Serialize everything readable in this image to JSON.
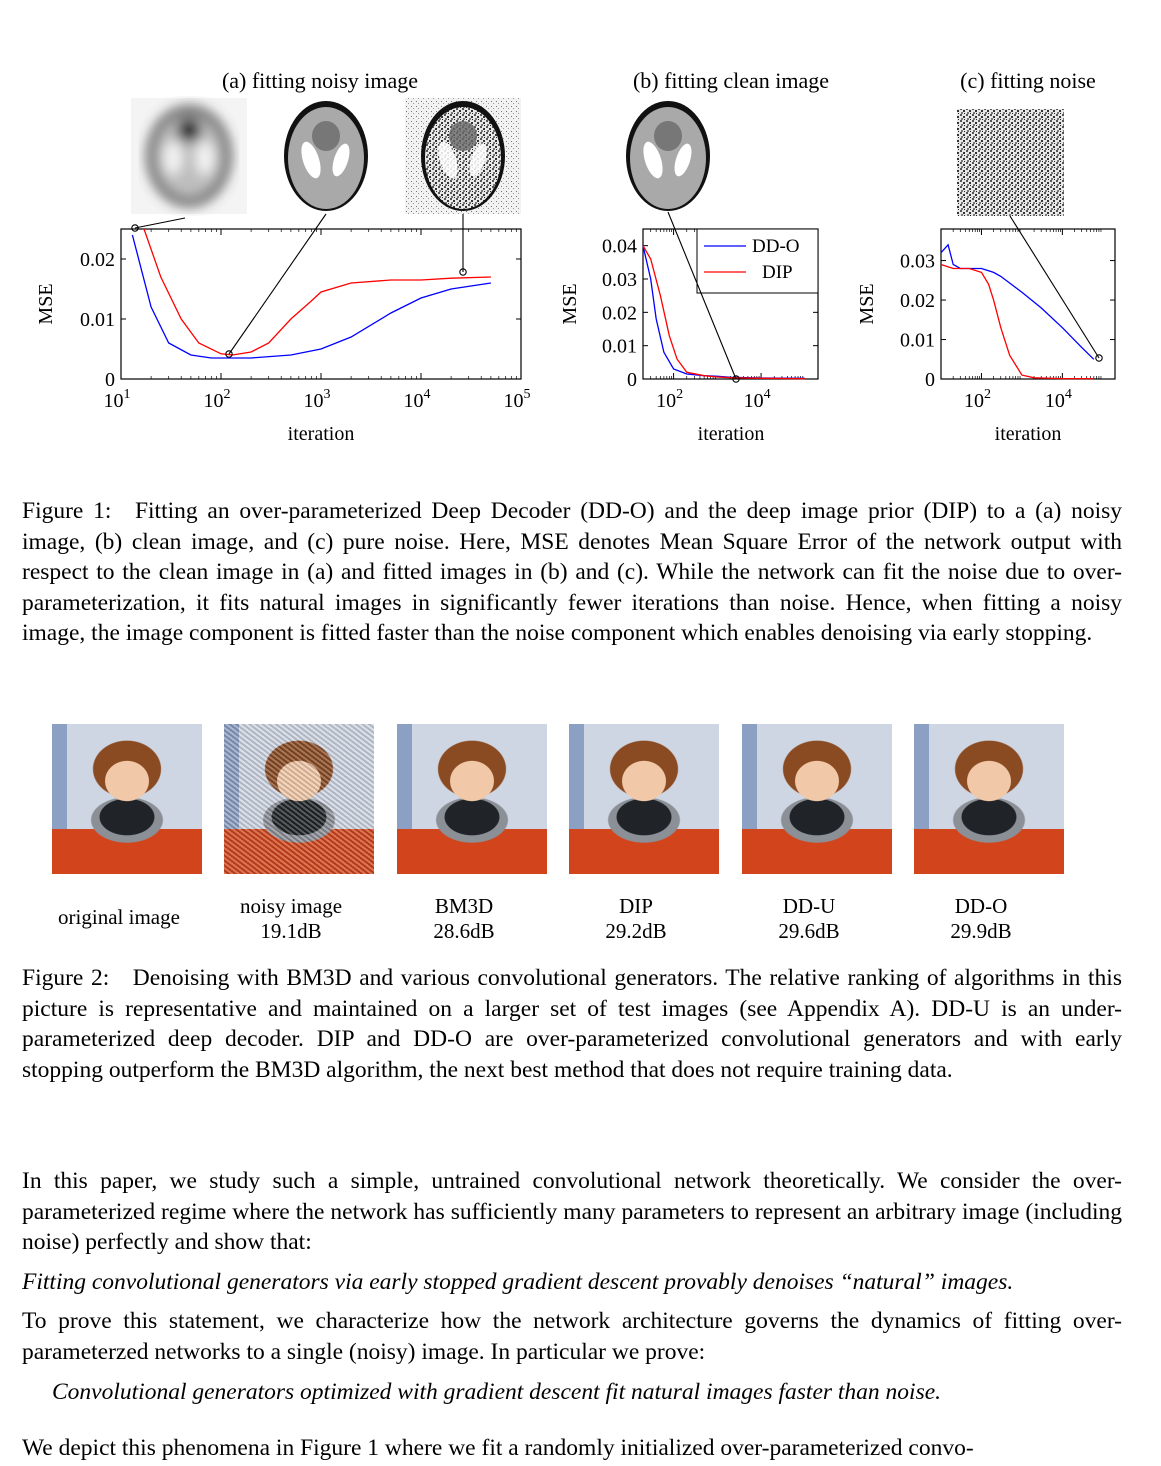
{
  "figure1": {
    "panel_a_title": "(a) fitting noisy image",
    "panel_b_title": "(b) fitting clean image",
    "panel_c_title": "(c) fitting noise",
    "ylabel": "MSE",
    "xlabel": "iteration",
    "legend": [
      "DD-O",
      "DIP"
    ],
    "colors": {
      "DD-O": "#0000ff",
      "DIP": "#ff0000"
    }
  },
  "chart_data": [
    {
      "type": "line",
      "title": "(a) fitting noisy image",
      "xlabel": "iteration",
      "ylabel": "MSE",
      "xscale": "log",
      "xlim": [
        10,
        100000
      ],
      "ylim": [
        0,
        0.025
      ],
      "xticks": [
        "10^1",
        "10^2",
        "10^3",
        "10^4",
        "10^5"
      ],
      "yticks": [
        "0",
        "0.01",
        "0.02"
      ],
      "series": [
        {
          "name": "DD-O",
          "color": "#0000ff",
          "x": [
            13,
            20,
            30,
            50,
            80,
            120,
            200,
            500,
            1000,
            2000,
            5000,
            10000,
            20000,
            50000
          ],
          "y": [
            0.024,
            0.012,
            0.006,
            0.004,
            0.0035,
            0.0035,
            0.0035,
            0.004,
            0.005,
            0.007,
            0.011,
            0.0135,
            0.015,
            0.016
          ]
        },
        {
          "name": "DIP",
          "color": "#ff0000",
          "x": [
            17,
            25,
            40,
            60,
            100,
            130,
            200,
            300,
            500,
            800,
            1000,
            2000,
            5000,
            10000,
            20000,
            50000
          ],
          "y": [
            0.025,
            0.017,
            0.01,
            0.006,
            0.0042,
            0.004,
            0.0045,
            0.006,
            0.01,
            0.013,
            0.0145,
            0.016,
            0.0165,
            0.0165,
            0.0168,
            0.017
          ]
        }
      ]
    },
    {
      "type": "line",
      "title": "(b) fitting clean image",
      "xlabel": "iteration",
      "ylabel": "MSE",
      "xscale": "log",
      "xlim": [
        20,
        200000
      ],
      "ylim": [
        0,
        0.045
      ],
      "xticks": [
        "10^2",
        "10^4"
      ],
      "yticks": [
        "0",
        "0.01",
        "0.02",
        "0.03",
        "0.04"
      ],
      "legend": [
        "DD-O",
        "DIP"
      ],
      "legend_position": "top-right",
      "series": [
        {
          "name": "DD-O",
          "color": "#0000ff",
          "x": [
            20,
            30,
            40,
            60,
            100,
            200,
            500,
            1000,
            2000,
            10000,
            100000
          ],
          "y": [
            0.04,
            0.03,
            0.018,
            0.008,
            0.003,
            0.0015,
            0.001,
            0.0008,
            0.0005,
            0.0003,
            0.0002
          ]
        },
        {
          "name": "DIP",
          "color": "#ff0000",
          "x": [
            20,
            30,
            50,
            80,
            120,
            200,
            500,
            1000,
            2000,
            10000,
            100000
          ],
          "y": [
            0.04,
            0.036,
            0.025,
            0.013,
            0.006,
            0.002,
            0.001,
            0.0006,
            0.0004,
            0.0002,
            0.0001
          ]
        }
      ]
    },
    {
      "type": "line",
      "title": "(c) fitting noise",
      "xlabel": "iteration",
      "ylabel": "MSE",
      "xscale": "log",
      "xlim": [
        10,
        200000
      ],
      "ylim": [
        0,
        0.038
      ],
      "xticks": [
        "10^2",
        "10^4"
      ],
      "yticks": [
        "0",
        "0.01",
        "0.02",
        "0.03"
      ],
      "series": [
        {
          "name": "DD-O",
          "color": "#0000ff",
          "x": [
            10,
            15,
            20,
            30,
            50,
            100,
            200,
            300,
            1000,
            3000,
            10000,
            30000,
            60000
          ],
          "y": [
            0.032,
            0.034,
            0.029,
            0.028,
            0.028,
            0.028,
            0.027,
            0.026,
            0.022,
            0.018,
            0.013,
            0.008,
            0.005
          ]
        },
        {
          "name": "DIP",
          "color": "#ff0000",
          "x": [
            10,
            20,
            50,
            100,
            150,
            200,
            300,
            500,
            1000,
            2000,
            10000,
            60000
          ],
          "y": [
            0.029,
            0.028,
            0.028,
            0.027,
            0.024,
            0.02,
            0.013,
            0.006,
            0.001,
            0.0003,
            0.0001,
            0.0001
          ]
        }
      ]
    }
  ],
  "captions": {
    "figure1": "Figure 1: Fitting an over-parameterized Deep Decoder (DD-O) and the deep image prior (DIP) to a (a) noisy image, (b) clean image, and (c) pure noise.  Here, MSE denotes Mean Square Error of the network output with respect to the clean image in (a) and fitted images in (b) and (c). While the network can fit the noise due to over-parameterization, it fits natural images in significantly fewer iterations than noise.  Hence, when fitting a noisy image, the image component is fitted faster than the noise component which enables denoising via early stopping.",
    "figure2": "Figure 2: Denoising with BM3D and various convolutional generators.  The relative ranking of algorithms in this picture is representative and maintained on a larger set of test images (see Appendix A). DD-U is an under-parameterized deep decoder.  DIP and DD-O are over-parameterized convolutional generators and with early stopping outperform the BM3D algorithm, the next best method that does not require training data."
  },
  "figure2": {
    "images": [
      {
        "label": "original image",
        "psnr": ""
      },
      {
        "label": "noisy image",
        "psnr": "19.1dB"
      },
      {
        "label": "BM3D",
        "psnr": "28.6dB"
      },
      {
        "label": "DIP",
        "psnr": "29.2dB"
      },
      {
        "label": "DD-U",
        "psnr": "29.6dB"
      },
      {
        "label": "DD-O",
        "psnr": "29.9dB"
      }
    ]
  },
  "body": {
    "para1": "In this paper, we study such a simple, untrained convolutional network theoretically.  We consider the over-parameterized regime where the network has sufficiently many parameters to represent an arbitrary image (including noise) perfectly and show that:",
    "claim1": "Fitting convolutional generators via early stopped gradient descent provably denoises “natural” images.",
    "para2": "To prove this statement, we characterize how the network architecture governs the dynamics of fitting over-parameterzed networks to a single (noisy) image. In particular we prove:",
    "claim2": "Convolutional generators optimized with gradient descent fit natural images faster than noise.",
    "para3": "We depict this phenomena in Figure 1 where we fit a randomly initialized over-parameterized convo-"
  }
}
